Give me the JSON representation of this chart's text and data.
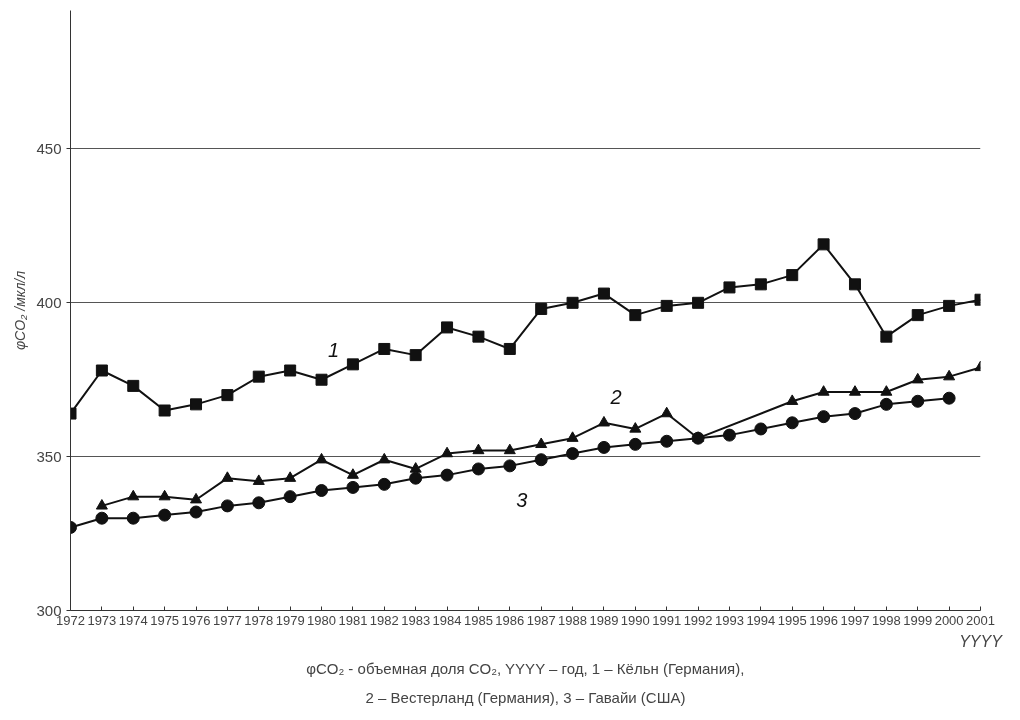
{
  "chart_data": {
    "type": "line",
    "ylabel": "φCO₂ /мкл/л",
    "xlabel": "YYYY",
    "xlim": [
      1972,
      2001
    ],
    "ylim": [
      300,
      495
    ],
    "xticks": [
      1972,
      1973,
      1974,
      1975,
      1976,
      1977,
      1978,
      1979,
      1980,
      1981,
      1982,
      1983,
      1984,
      1985,
      1986,
      1987,
      1988,
      1989,
      1990,
      1991,
      1992,
      1993,
      1994,
      1995,
      1996,
      1997,
      1998,
      1999,
      2000,
      2001
    ],
    "yticks": [
      300,
      350,
      400,
      450
    ],
    "grid": "y",
    "legend": false,
    "line_style": "solid",
    "series": [
      {
        "name": "1",
        "color": "#111111",
        "marker": "square",
        "x": [
          1972,
          1973,
          1974,
          1975,
          1976,
          1977,
          1978,
          1979,
          1980,
          1981,
          1982,
          1983,
          1984,
          1985,
          1986,
          1987,
          1988,
          1989,
          1990,
          1991,
          1992,
          1993,
          1994,
          1995,
          1996,
          1997,
          1998,
          1999,
          2000,
          2001
        ],
        "values": [
          364,
          378,
          373,
          365,
          367,
          370,
          376,
          378,
          375,
          380,
          385,
          383,
          392,
          389,
          385,
          398,
          400,
          403,
          396,
          399,
          400,
          405,
          406,
          409,
          419,
          406,
          389,
          396,
          399,
          401
        ]
      },
      {
        "name": "2",
        "color": "#111111",
        "marker": "triangle",
        "x": [
          1973,
          1974,
          1975,
          1976,
          1977,
          1978,
          1979,
          1980,
          1981,
          1982,
          1983,
          1984,
          1985,
          1986,
          1987,
          1988,
          1989,
          1990,
          1991,
          1992,
          1995,
          1996,
          1997,
          1998,
          1999,
          2000,
          2001
        ],
        "values": [
          334,
          337,
          337,
          336,
          343,
          342,
          343,
          349,
          344,
          349,
          346,
          351,
          352,
          352,
          354,
          356,
          361,
          359,
          364,
          356,
          368,
          371,
          371,
          371,
          375,
          376,
          379
        ]
      },
      {
        "name": "3",
        "color": "#111111",
        "marker": "circle",
        "x": [
          1972,
          1973,
          1974,
          1975,
          1976,
          1977,
          1978,
          1979,
          1980,
          1981,
          1982,
          1983,
          1984,
          1985,
          1986,
          1987,
          1988,
          1989,
          1990,
          1991,
          1992,
          1993,
          1994,
          1995,
          1996,
          1997,
          1998,
          1999,
          2000
        ],
        "values": [
          327,
          330,
          330,
          331,
          332,
          334,
          335,
          337,
          339,
          340,
          341,
          343,
          344,
          346,
          347,
          349,
          351,
          353,
          354,
          355,
          356,
          357,
          359,
          361,
          363,
          364,
          367,
          368,
          369
        ]
      }
    ],
    "annotations": [
      "φCO₂ - объемная доля CO₂, YYYY – год, 1 – Кёльн (Германия),",
      "2 – Вестерланд (Германия), 3 – Гавайи (США)"
    ]
  }
}
